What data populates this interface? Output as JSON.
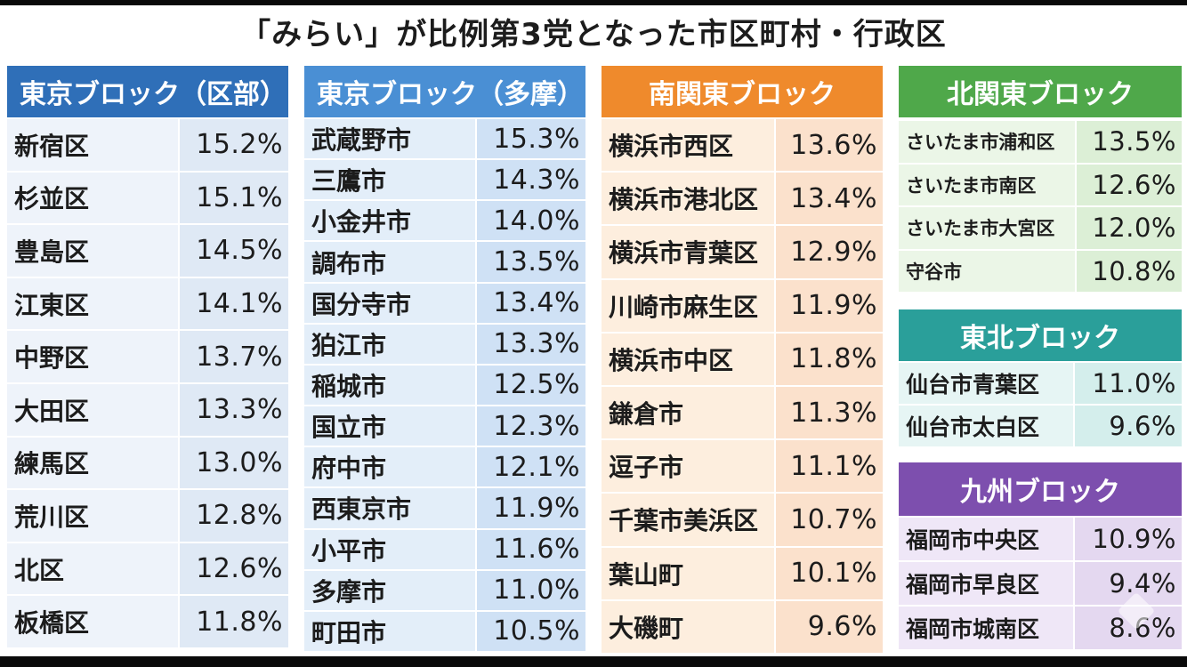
{
  "title": "「みらい」が比例第3党となった市区町村・行政区",
  "blocks": [
    {
      "header": "東京ブロック（区部）",
      "header_color": "#2f6fb8",
      "row_color_a": "#dfe9f5",
      "row_color_b": "#eef3fa",
      "rows": [
        {
          "name": "新宿区",
          "value": "15.2%"
        },
        {
          "name": "杉並区",
          "value": "15.1%"
        },
        {
          "name": "豊島区",
          "value": "14.5%"
        },
        {
          "name": "江東区",
          "value": "14.1%"
        },
        {
          "name": "中野区",
          "value": "13.7%"
        },
        {
          "name": "大田区",
          "value": "13.3%"
        },
        {
          "name": "練馬区",
          "value": "13.0%"
        },
        {
          "name": "荒川区",
          "value": "12.8%"
        },
        {
          "name": "北区",
          "value": "12.6%"
        },
        {
          "name": "板橋区",
          "value": "11.8%"
        }
      ]
    },
    {
      "header": "東京ブロック（多摩）",
      "header_color": "#4a8fd4",
      "row_color_a": "#cfe1f5",
      "row_color_b": "#e3eef9",
      "rows": [
        {
          "name": "武蔵野市",
          "value": "15.3%"
        },
        {
          "name": "三鷹市",
          "value": "14.3%"
        },
        {
          "name": "小金井市",
          "value": "14.0%"
        },
        {
          "name": "調布市",
          "value": "13.5%"
        },
        {
          "name": "国分寺市",
          "value": "13.4%"
        },
        {
          "name": "狛江市",
          "value": "13.3%"
        },
        {
          "name": "稲城市",
          "value": "12.5%"
        },
        {
          "name": "国立市",
          "value": "12.3%"
        },
        {
          "name": "府中市",
          "value": "12.1%"
        },
        {
          "name": "西東京市",
          "value": "11.9%"
        },
        {
          "name": "小平市",
          "value": "11.6%"
        },
        {
          "name": "多摩市",
          "value": "11.0%"
        },
        {
          "name": "町田市",
          "value": "10.5%"
        }
      ]
    },
    {
      "header": "南関東ブロック",
      "header_color": "#ef8a2c",
      "row_color_a": "#fbe1cc",
      "row_color_b": "#fdeede",
      "rows": [
        {
          "name": "横浜市西区",
          "value": "13.6%"
        },
        {
          "name": "横浜市港北区",
          "value": "13.4%"
        },
        {
          "name": "横浜市青葉区",
          "value": "12.9%"
        },
        {
          "name": "川崎市麻生区",
          "value": "11.9%"
        },
        {
          "name": "横浜市中区",
          "value": "11.8%"
        },
        {
          "name": "鎌倉市",
          "value": "11.3%"
        },
        {
          "name": "逗子市",
          "value": "11.1%"
        },
        {
          "name": "千葉市美浜区",
          "value": "10.7%"
        },
        {
          "name": "葉山町",
          "value": "10.1%"
        },
        {
          "name": "大磯町",
          "value": "9.6%"
        }
      ]
    },
    {
      "header": "北関東ブロック",
      "header_color": "#4fa84a",
      "row_color_a": "#dcefd6",
      "row_color_b": "#ebf6e7",
      "rows": [
        {
          "name": "さいたま市浦和区",
          "value": "13.5%"
        },
        {
          "name": "さいたま市南区",
          "value": "12.6%"
        },
        {
          "name": "さいたま市大宮区",
          "value": "12.0%"
        },
        {
          "name": "守谷市",
          "value": "10.8%"
        }
      ]
    },
    {
      "header": "東北ブロック",
      "header_color": "#2a9f9a",
      "row_color_a": "#d4eeec",
      "row_color_b": "#e6f5f4",
      "rows": [
        {
          "name": "仙台市青葉区",
          "value": "11.0%"
        },
        {
          "name": "仙台市太白区",
          "value": "9.6%"
        }
      ]
    },
    {
      "header": "九州ブロック",
      "header_color": "#7d4fae",
      "row_color_a": "#e4d8f0",
      "row_color_b": "#efe7f7",
      "rows": [
        {
          "name": "福岡市中央区",
          "value": "10.9%"
        },
        {
          "name": "福岡市早良区",
          "value": "9.4%"
        },
        {
          "name": "福岡市城南区",
          "value": "8.6%"
        }
      ]
    }
  ]
}
